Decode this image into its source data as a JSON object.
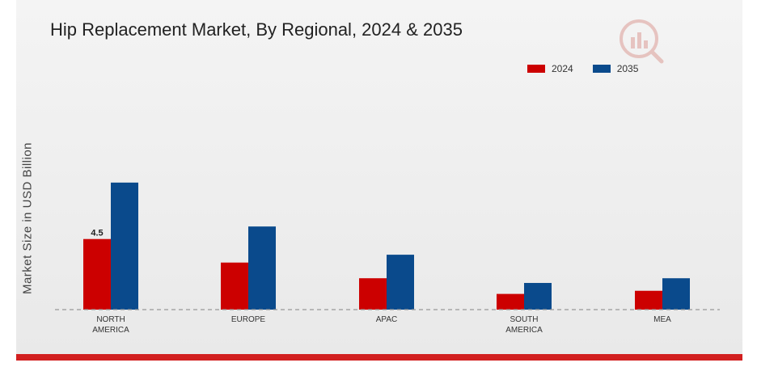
{
  "chart_data": {
    "type": "bar",
    "title": "Hip Replacement Market, By Regional, 2024 & 2035",
    "ylabel": "Market Size in USD Billion",
    "xlabel": "",
    "ylim": [
      0,
      12
    ],
    "grid": false,
    "legend_position": "top-right",
    "categories": [
      "NORTH AMERICA",
      "EUROPE",
      "APAC",
      "SOUTH AMERICA",
      "MEA"
    ],
    "category_lines": [
      [
        "NORTH",
        "AMERICA"
      ],
      [
        "EUROPE"
      ],
      [
        "APAC"
      ],
      [
        "SOUTH",
        "AMERICA"
      ],
      [
        "MEA"
      ]
    ],
    "series": [
      {
        "name": "2024",
        "color": "#cc0000",
        "values": [
          4.5,
          3.0,
          2.0,
          1.0,
          1.2
        ]
      },
      {
        "name": "2035",
        "color": "#0a4a8c",
        "values": [
          8.1,
          5.3,
          3.5,
          1.7,
          2.0
        ]
      }
    ],
    "data_labels": [
      {
        "series": 0,
        "index": 0,
        "text": "4.5"
      }
    ]
  }
}
